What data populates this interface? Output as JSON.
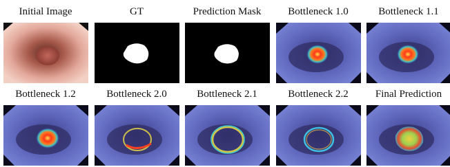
{
  "rows": [
    [
      "Initial Image",
      "GT",
      "Prediction Mask",
      "Bottleneck 1.0",
      "Bottleneck 1.1"
    ],
    [
      "Bottleneck 1.2",
      "Bottleneck 2.0",
      "Bottleneck 2.1",
      "Bottleneck 2.2",
      "Final Prediction"
    ]
  ]
}
